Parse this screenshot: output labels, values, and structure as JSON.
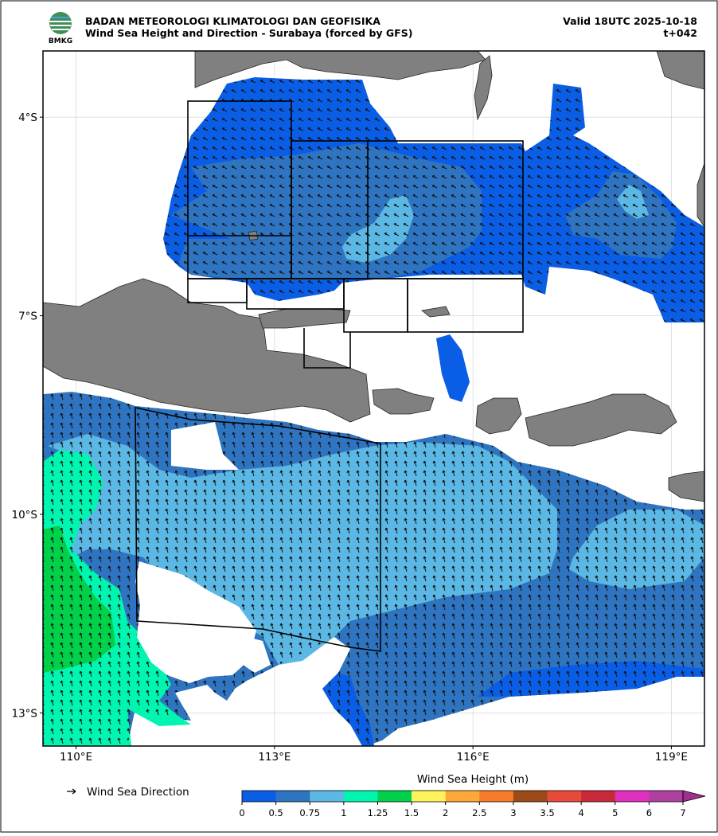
{
  "header": {
    "logo_text": "BMKG",
    "agency": "BADAN METEOROLOGI KLIMATOLOGI DAN GEOFISIKA",
    "title": "Wind Sea Height and Direction - Surabaya (forced by GFS)",
    "valid": "Valid 18UTC 2025-10-18",
    "lead": "t+042"
  },
  "map": {
    "xlim": [
      109.5,
      119.5
    ],
    "ylim": [
      -13.5,
      -3
    ],
    "xticks": [
      {
        "value": 110,
        "label": "110°E"
      },
      {
        "value": 113,
        "label": "113°E"
      },
      {
        "value": 116,
        "label": "116°E"
      },
      {
        "value": 119,
        "label": "119°E"
      }
    ],
    "yticks": [
      {
        "value": -4,
        "label": "4°S"
      },
      {
        "value": -7,
        "label": "7°S"
      },
      {
        "value": -10,
        "label": "10°S"
      },
      {
        "value": -13,
        "label": "13°S"
      }
    ],
    "grid": true
  },
  "legend": {
    "direction": "Wind Sea Direction"
  },
  "colorbar": {
    "title": "Wind Sea Height (m)",
    "levels": [
      0,
      0.5,
      0.75,
      1,
      1.25,
      1.5,
      2,
      2.5,
      3,
      3.5,
      4,
      5,
      6,
      7
    ],
    "colors": [
      "#0a5ee6",
      "#2f74c0",
      "#5bb8e4",
      "#00f5b0",
      "#00d04a",
      "#fff35a",
      "#ffa83a",
      "#f57a2a",
      "#9c4a18",
      "#e84a3a",
      "#c8283a",
      "#e030c0",
      "#b040a0"
    ],
    "extend_color": "#a03090"
  }
}
